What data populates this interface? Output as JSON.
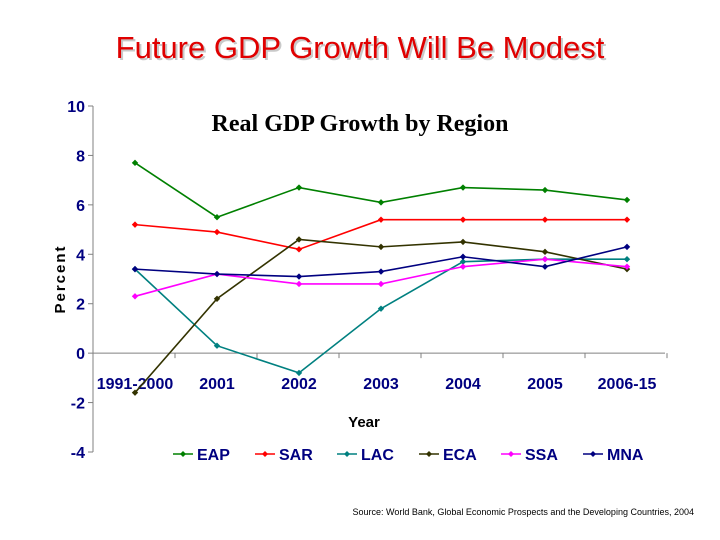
{
  "slide": {
    "title": "Future GDP Growth Will Be Modest",
    "source": "Source: World Bank, Global Economic Prospects and the Developing Countries, 2004"
  },
  "chart_data": {
    "type": "line",
    "title": "Real GDP Growth by Region",
    "xlabel": "Year",
    "ylabel": "Percent",
    "categories": [
      "1991-2000",
      "2001",
      "2002",
      "2003",
      "2004",
      "2005",
      "2006-15"
    ],
    "ylim": [
      -4,
      10
    ],
    "yticks": [
      -4,
      -2,
      0,
      2,
      4,
      6,
      8,
      10
    ],
    "grid": false,
    "legend": "bottom",
    "series": [
      {
        "name": "EAP",
        "color": "#008000",
        "values": [
          7.7,
          5.5,
          6.7,
          6.1,
          6.7,
          6.6,
          6.2
        ]
      },
      {
        "name": "SAR",
        "color": "#ff0000",
        "values": [
          5.2,
          4.9,
          4.2,
          5.4,
          5.4,
          5.4,
          5.4
        ]
      },
      {
        "name": "LAC",
        "color": "#008080",
        "values": [
          3.4,
          0.3,
          -0.8,
          1.8,
          3.7,
          3.8,
          3.8
        ]
      },
      {
        "name": "ECA",
        "color": "#333300",
        "values": [
          -1.6,
          2.2,
          4.6,
          4.3,
          4.5,
          4.1,
          3.4
        ]
      },
      {
        "name": "SSA",
        "color": "#ff00ff",
        "values": [
          2.3,
          3.2,
          2.8,
          2.8,
          3.5,
          3.8,
          3.5
        ]
      },
      {
        "name": "MNA",
        "color": "#000080",
        "values": [
          3.4,
          3.2,
          3.1,
          3.3,
          3.9,
          3.5,
          4.3
        ]
      }
    ]
  }
}
